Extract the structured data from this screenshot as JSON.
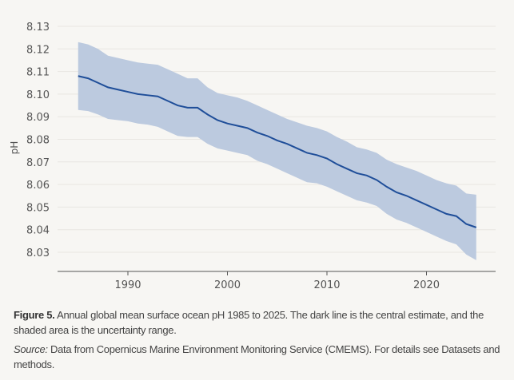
{
  "chart_data": {
    "type": "line",
    "title": "",
    "xlabel": "",
    "ylabel": "pH",
    "xlim": [
      1985,
      2025
    ],
    "ylim": [
      8.025,
      8.13
    ],
    "xticks": [
      1990,
      2000,
      2010,
      2020
    ],
    "yticks": [
      8.03,
      8.04,
      8.05,
      8.06,
      8.07,
      8.08,
      8.09,
      8.1,
      8.11,
      8.12,
      8.13
    ],
    "ytick_labels": [
      "8.03",
      "8.04",
      "8.05",
      "8.06",
      "8.07",
      "8.08",
      "8.09",
      "8.10",
      "8.11",
      "8.12",
      "8.13"
    ],
    "grid": "horizontal",
    "colors": {
      "line": "#1f4e99",
      "band": "#bccadf"
    },
    "x": [
      1985,
      1986,
      1987,
      1988,
      1989,
      1990,
      1991,
      1992,
      1993,
      1994,
      1995,
      1996,
      1997,
      1998,
      1999,
      2000,
      2001,
      2002,
      2003,
      2004,
      2005,
      2006,
      2007,
      2008,
      2009,
      2010,
      2011,
      2012,
      2013,
      2014,
      2015,
      2016,
      2017,
      2018,
      2019,
      2020,
      2021,
      2022,
      2023,
      2024,
      2025
    ],
    "central": [
      8.108,
      8.107,
      8.105,
      8.103,
      8.102,
      8.101,
      8.1,
      8.0995,
      8.099,
      8.097,
      8.095,
      8.094,
      8.094,
      8.091,
      8.0885,
      8.087,
      8.086,
      8.085,
      8.083,
      8.0815,
      8.0795,
      8.078,
      8.076,
      8.074,
      8.073,
      8.0715,
      8.069,
      8.067,
      8.065,
      8.064,
      8.062,
      8.059,
      8.0565,
      8.055,
      8.053,
      8.051,
      8.049,
      8.047,
      8.046,
      8.0425,
      8.041
    ],
    "upper": [
      8.123,
      8.122,
      8.12,
      8.117,
      8.116,
      8.115,
      8.114,
      8.1135,
      8.113,
      8.111,
      8.109,
      8.107,
      8.107,
      8.103,
      8.1005,
      8.0995,
      8.0985,
      8.097,
      8.095,
      8.093,
      8.091,
      8.089,
      8.0875,
      8.086,
      8.085,
      8.0835,
      8.081,
      8.079,
      8.0765,
      8.0755,
      8.074,
      8.071,
      8.069,
      8.0675,
      8.066,
      8.064,
      8.062,
      8.0605,
      8.0595,
      8.056,
      8.0555
    ],
    "lower": [
      8.093,
      8.0925,
      8.091,
      8.089,
      8.0885,
      8.088,
      8.087,
      8.0865,
      8.0855,
      8.0835,
      8.0815,
      8.081,
      8.081,
      8.078,
      8.076,
      8.075,
      8.074,
      8.073,
      8.0705,
      8.069,
      8.067,
      8.065,
      8.063,
      8.061,
      8.0605,
      8.059,
      8.057,
      8.055,
      8.053,
      8.052,
      8.0505,
      8.047,
      8.0445,
      8.043,
      8.041,
      8.039,
      8.037,
      8.035,
      8.0335,
      8.029,
      8.0265
    ]
  },
  "caption": {
    "figure_label": "Figure 5.",
    "figure_text": " Annual global mean surface ocean pH 1985 to 2025. The dark line is the central estimate, and the shaded area is the uncertainty range.",
    "source_label": "Source:",
    "source_text": " Data from Copernicus Marine Environment Monitoring Service (CMEMS). For details see Datasets and methods."
  }
}
